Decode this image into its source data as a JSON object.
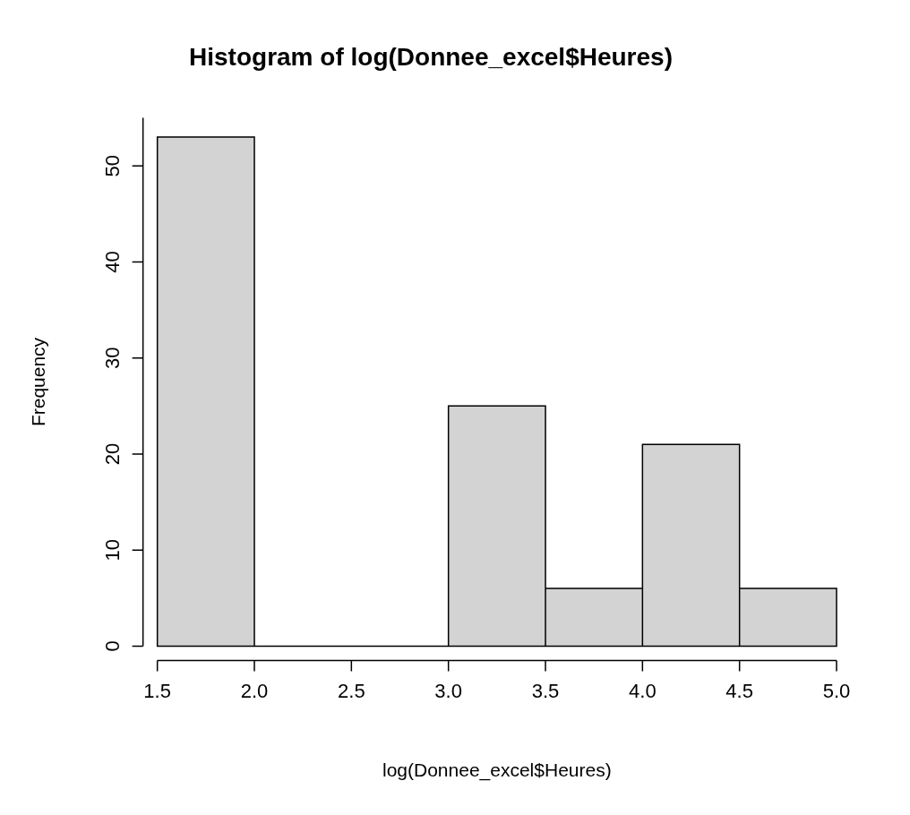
{
  "chart_data": {
    "type": "histogram",
    "title": "Histogram of log(Donnee_excel$Heures)",
    "xlabel": "log(Donnee_excel$Heures)",
    "ylabel": "Frequency",
    "bins": [
      1.5,
      2.0,
      2.5,
      3.0,
      3.5,
      4.0,
      4.5,
      5.0
    ],
    "values": [
      53,
      0,
      0,
      25,
      6,
      21,
      6
    ],
    "color": "#d3d3d3",
    "xlim": [
      1.5,
      5.0
    ],
    "ylim": [
      0,
      55
    ],
    "xticks": [
      {
        "value": 1.5,
        "label": "1.5"
      },
      {
        "value": 2,
        "label": "2.0"
      },
      {
        "value": 2.5,
        "label": "2.5"
      },
      {
        "value": 3,
        "label": "3.0"
      },
      {
        "value": 3.5,
        "label": "3.5"
      },
      {
        "value": 4,
        "label": "4.0"
      },
      {
        "value": 4.5,
        "label": "4.5"
      },
      {
        "value": 5,
        "label": "5.0"
      }
    ],
    "yticks": [
      0,
      10,
      20,
      30,
      40,
      50
    ],
    "grid": false,
    "legend": false
  }
}
